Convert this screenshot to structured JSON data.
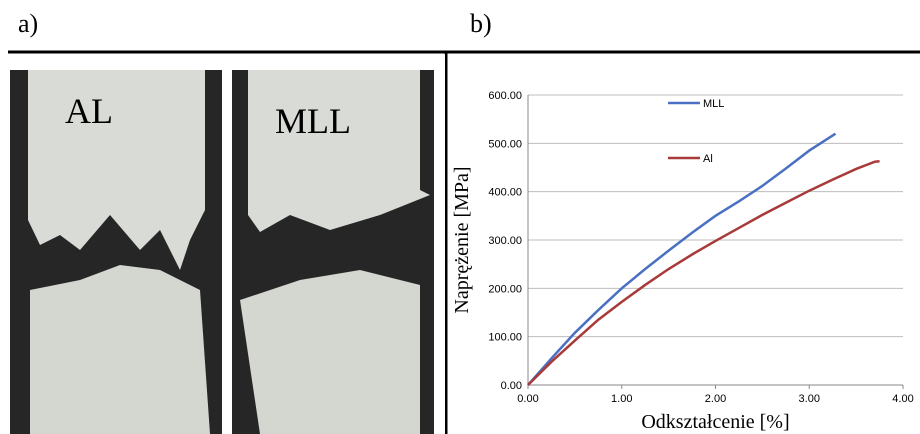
{
  "panel_labels": [
    "a)",
    "b)"
  ],
  "photo_labels": [
    "AL",
    "MLL"
  ],
  "chart_data": {
    "type": "line",
    "xlabel": "Odkształcenie [%]",
    "ylabel": "Naprężenie [MPa]",
    "xlim": [
      0,
      4
    ],
    "ylim": [
      0,
      600
    ],
    "xticks": [
      {
        "value": 0,
        "label": "0.00"
      },
      {
        "value": 1,
        "label": "1.00"
      },
      {
        "value": 2,
        "label": "2.00"
      },
      {
        "value": 3,
        "label": "3.00"
      },
      {
        "value": 4,
        "label": "4.00"
      }
    ],
    "yticks": [
      {
        "value": 0,
        "label": "0.00"
      },
      {
        "value": 100,
        "label": "100.00"
      },
      {
        "value": 200,
        "label": "200.00"
      },
      {
        "value": 300,
        "label": "300.00"
      },
      {
        "value": 400,
        "label": "400.00"
      },
      {
        "value": 500,
        "label": "500.00"
      },
      {
        "value": 600,
        "label": "600.00"
      }
    ],
    "grid": true,
    "series": [
      {
        "name": "MLL",
        "color": "#4a70c4",
        "x": [
          0,
          0.25,
          0.5,
          0.75,
          1.0,
          1.25,
          1.5,
          1.75,
          2.0,
          2.25,
          2.5,
          2.75,
          3.0,
          3.28
        ],
        "values": [
          0,
          55,
          108,
          155,
          200,
          240,
          278,
          315,
          350,
          380,
          412,
          448,
          485,
          520
        ]
      },
      {
        "name": "Al",
        "color": "#a83a3a",
        "x": [
          0,
          0.25,
          0.5,
          0.75,
          1.0,
          1.25,
          1.5,
          1.75,
          2.0,
          2.25,
          2.5,
          2.75,
          3.0,
          3.25,
          3.5,
          3.7,
          3.75
        ],
        "values": [
          0,
          48,
          92,
          135,
          172,
          207,
          240,
          270,
          298,
          325,
          352,
          377,
          402,
          425,
          447,
          462,
          463
        ]
      }
    ]
  }
}
